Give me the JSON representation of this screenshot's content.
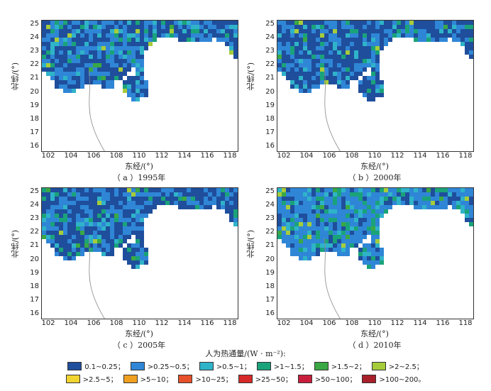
{
  "panels": [
    {
      "id": "a",
      "caption": "（ a ）1995年",
      "level": 0.55
    },
    {
      "id": "b",
      "caption": "（ b ）2000年",
      "level": 0.45
    },
    {
      "id": "c",
      "caption": "（ c ）2005年",
      "level": 0.5
    },
    {
      "id": "d",
      "caption": "（ d ）2010年",
      "level": 0.85
    }
  ],
  "axes": {
    "ylabel": "北纬/(°)",
    "xlabel": "东经/(°)",
    "yticks": [
      "25",
      "24",
      "23",
      "22",
      "21",
      "20",
      "19",
      "18",
      "17",
      "16"
    ],
    "xticks": [
      "102",
      "104",
      "106",
      "108",
      "110",
      "112",
      "114",
      "116",
      "118"
    ]
  },
  "legend": {
    "title": "人为热通量/(W · m⁻²):",
    "row1": [
      {
        "label": "0.1~0.25；",
        "color": "#1f4e9c"
      },
      {
        "label": ">0.25~0.5；",
        "color": "#2f86d6"
      },
      {
        "label": ">0.5~1；",
        "color": "#2fb3c9"
      },
      {
        "label": ">1~1.5；",
        "color": "#1aa37a"
      },
      {
        "label": ">1.5~2；",
        "color": "#3aa845"
      },
      {
        "label": ">2~2.5；",
        "color": "#a6cc3a"
      }
    ],
    "row2": [
      {
        "label": ">2.5~5；",
        "color": "#f2d430"
      },
      {
        "label": ">5~10；",
        "color": "#f0a020"
      },
      {
        "label": ">10~25；",
        "color": "#e6502a"
      },
      {
        "label": ">25~50；",
        "color": "#d62a2a"
      },
      {
        "label": ">50~100；",
        "color": "#c81e3c"
      },
      {
        "label": ">100~200。",
        "color": "#a8202a"
      }
    ]
  }
}
